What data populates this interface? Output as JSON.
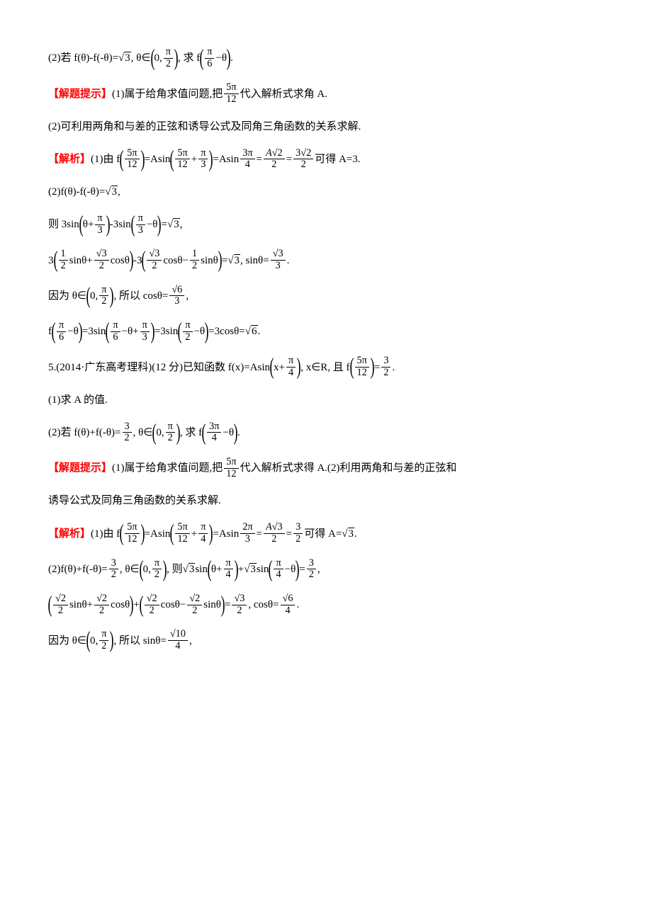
{
  "colors": {
    "text": "#000000",
    "accent": "#ff0000",
    "background": "#ffffff"
  },
  "typography": {
    "body_font": "SimSun",
    "body_size_pt": 11
  },
  "labels": {
    "hint": "【解题提示】",
    "analysis": "【解析】"
  },
  "problem4": {
    "part2_prompt_prefix": "(2)若 f(θ)-f(-θ)=",
    "sqrt3": "3",
    "theta_in": ", θ∈",
    "interval_lo": "0",
    "interval_hi_num": "π",
    "interval_hi_den": "2",
    "find_prefix": ", 求 f",
    "find_arg_num": "π",
    "find_arg_den": "6",
    "find_arg_suffix": "−θ",
    "period": ".",
    "hint1_text": "(1)属于给角求值问题,把",
    "hint1_frac_num": "5π",
    "hint1_frac_den": "12",
    "hint1_suffix": "代入解析式求角 A.",
    "hint2_text": "(2)可利用两角和与差的正弦和诱导公式及同角三角函数的关系求解.",
    "sol1_prefix": "(1)由 f",
    "sol1_arg_num": "5π",
    "sol1_arg_den": "12",
    "sol1_eq1": "=Asin",
    "sol1_arg2a_num": "5π",
    "sol1_arg2a_den": "12",
    "sol1_plus": "+",
    "sol1_arg2b_num": "π",
    "sol1_arg2b_den": "3",
    "sol1_eq2": "=Asin",
    "sol1_arg3_num": "3π",
    "sol1_arg3_den": "4",
    "sol1_eq3": "=",
    "sol1_r1_num": "A√2",
    "sol1_r1_den": "2",
    "sol1_eq4": "=",
    "sol1_r2_num": "3√2",
    "sol1_r2_den": "2",
    "sol1_suffix": "可得 A=3.",
    "sol2_l1": "(2)f(θ)-f(-θ)=",
    "sol2_l2_prefix": "则 3sin",
    "sol2_l2_arg1a": "θ+",
    "sol2_l2_arg1b_num": "π",
    "sol2_l2_arg1b_den": "3",
    "sol2_l2_mid": "-3sin",
    "sol2_l2_arg2a_num": "π",
    "sol2_l2_arg2a_den": "3",
    "sol2_l2_arg2b": "−θ",
    "sol2_l2_eq": "=",
    "sol2_l2_suffix": ",",
    "sol2_l3_p1": "3",
    "sol2_l3_t1a_num": "1",
    "sol2_l3_t1a_den": "2",
    "sol2_l3_t1b": "sinθ+",
    "sol2_l3_t1c_num": "√3",
    "sol2_l3_t1c_den": "2",
    "sol2_l3_t1d": "cosθ",
    "sol2_l3_mid": "-3",
    "sol2_l3_t2a_num": "√3",
    "sol2_l3_t2a_den": "2",
    "sol2_l3_t2b": "cosθ−",
    "sol2_l3_t2c_num": "1",
    "sol2_l3_t2c_den": "2",
    "sol2_l3_t2d": "sinθ",
    "sol2_l3_eq": "=",
    "sol2_l3_sintheta": ", sinθ=",
    "sol2_l3_r_num": "√3",
    "sol2_l3_r_den": "3",
    "sol2_l4_prefix": "因为 θ∈",
    "sol2_l4_mid": ", 所以 cosθ=",
    "sol2_l4_r_num": "√6",
    "sol2_l4_r_den": "3",
    "sol2_l5_prefix": "f",
    "sol2_l5_arg1_num": "π",
    "sol2_l5_arg1_den": "6",
    "sol2_l5_arg1_suf": "−θ",
    "sol2_l5_eq1": "=3sin",
    "sol2_l5_arg2a_num": "π",
    "sol2_l5_arg2a_den": "6",
    "sol2_l5_arg2b": "−θ+",
    "sol2_l5_arg2c_num": "π",
    "sol2_l5_arg2c_den": "3",
    "sol2_l5_eq2": "=3sin",
    "sol2_l5_arg3_num": "π",
    "sol2_l5_arg3_den": "2",
    "sol2_l5_arg3_suf": "−θ",
    "sol2_l5_eq3": "=3cosθ=",
    "sol2_l5_result": "6"
  },
  "problem5": {
    "header_prefix": "5.(2014·广东高考理科)(12 分)已知函数 f(x)=Asin",
    "header_arg_a": "x+",
    "header_arg_b_num": "π",
    "header_arg_b_den": "4",
    "header_mid": ", x∈R, 且 f",
    "header_arg2_num": "5π",
    "header_arg2_den": "12",
    "header_eq": "=",
    "header_r_num": "3",
    "header_r_den": "2",
    "header_suffix": ".",
    "part1": "(1)求 A 的值.",
    "part2_prefix": "(2)若 f(θ)+f(-θ)=",
    "part2_r_num": "3",
    "part2_r_den": "2",
    "part2_theta": ", θ∈",
    "part2_find": ", 求 f",
    "part2_arg_num": "3π",
    "part2_arg_den": "4",
    "part2_arg_suf": "−θ",
    "hint1_text": "(1)属于给角求值问题,把",
    "hint1_frac_num": "5π",
    "hint1_frac_den": "12",
    "hint1_suffix": "代入解析式求得 A.(2)利用两角和与差的正弦和",
    "hint2_text": "诱导公式及同角三角函数的关系求解.",
    "sol1_prefix": "(1)由 f",
    "sol1_arg3_num": "2π",
    "sol1_arg3_den": "3",
    "sol1_r1_num": "A√3",
    "sol1_r1_den": "2",
    "sol1_r2_num": "3",
    "sol1_r2_den": "2",
    "sol1_suffix": "可得 A=",
    "sol1_result": "3",
    "sol2_l1_prefix": "(2)f(θ)+f(-θ)=",
    "sol2_l1_mid1": ", θ∈",
    "sol2_l1_mid2": ", 则",
    "sol2_l1_sqrt3a": "3",
    "sol2_l1_sin1": "sin",
    "sol2_l1_arg1a": "θ+",
    "sol2_l1_arg1b_num": "π",
    "sol2_l1_arg1b_den": "4",
    "sol2_l1_plus": "+",
    "sol2_l1_sin2": "sin",
    "sol2_l1_arg2a_num": "π",
    "sol2_l1_arg2a_den": "4",
    "sol2_l1_arg2b": "−θ",
    "sol2_l1_eq": "=",
    "sol2_l2_t1a_num": "√2",
    "sol2_l2_t1a_den": "2",
    "sol2_l2_t1b": "sinθ+",
    "sol2_l2_t1c_num": "√2",
    "sol2_l2_t1c_den": "2",
    "sol2_l2_t1d": "cosθ",
    "sol2_l2_plus": "+",
    "sol2_l2_t2a_num": "√2",
    "sol2_l2_t2a_den": "2",
    "sol2_l2_t2b": "cosθ−",
    "sol2_l2_t2c_num": "√2",
    "sol2_l2_t2c_den": "2",
    "sol2_l2_t2d": "sinθ",
    "sol2_l2_eq": "=",
    "sol2_l2_r_num": "√3",
    "sol2_l2_r_den": "2",
    "sol2_l2_cos": ", cosθ=",
    "sol2_l2_cos_num": "√6",
    "sol2_l2_cos_den": "4",
    "sol2_l3_prefix": "因为 θ∈",
    "sol2_l3_mid": ", 所以 sinθ=",
    "sol2_l3_r_num": "√10",
    "sol2_l3_r_den": "4"
  }
}
